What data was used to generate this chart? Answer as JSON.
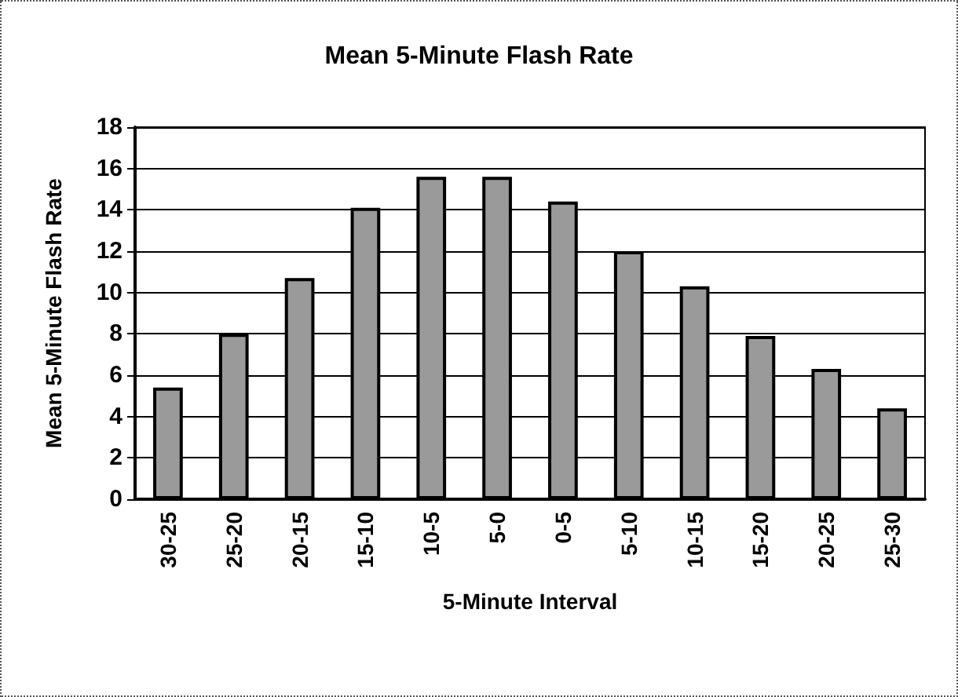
{
  "chart_data": {
    "type": "bar",
    "title": "Mean 5-Minute Flash Rate",
    "xlabel": "5-Minute Interval",
    "ylabel": "Mean 5-Minute Flash Rate",
    "categories": [
      "30-25",
      "25-20",
      "20-15",
      "15-10",
      "10-5",
      "5-0",
      "0-5",
      "5-10",
      "10-15",
      "15-20",
      "20-25",
      "25-30"
    ],
    "values": [
      5.4,
      8.0,
      10.7,
      14.1,
      15.6,
      15.6,
      14.4,
      12.0,
      10.3,
      7.9,
      6.3,
      4.4
    ],
    "color": "#9a9a9a",
    "ylim": [
      0,
      18
    ],
    "yticks": [
      0,
      2,
      4,
      6,
      8,
      10,
      12,
      14,
      16,
      18
    ],
    "grid": "y"
  }
}
